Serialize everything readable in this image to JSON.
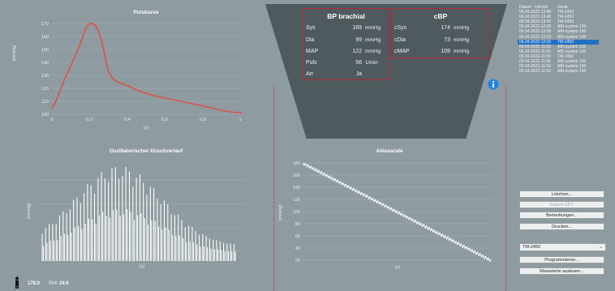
{
  "pulse_chart": {
    "title": "Pulskurve",
    "ylabel": "[mmHg]",
    "xlabel": "[s]",
    "yticks": [
      "170",
      "160",
      "150",
      "140",
      "130",
      "120",
      "110",
      "100"
    ],
    "xticks": [
      "0",
      "0,2",
      "0,4",
      "0,6",
      "0,8",
      "1"
    ],
    "color": "#e8473a"
  },
  "osc_chart": {
    "title": "Oszillatorischer Druckverlauf",
    "ylabel": "[mmHg]",
    "xlabel": "[s]"
  },
  "ablass_chart": {
    "title": "Ablassrate",
    "ylabel": "[mmHg]",
    "xlabel": "[s]",
    "yticks": [
      "180",
      "160",
      "140",
      "120",
      "100",
      "80",
      "60",
      "40",
      "20"
    ]
  },
  "bp_brachial": {
    "title": "BP brachial",
    "rows": [
      {
        "label": "Sys",
        "value": "169",
        "unit": "mmHg"
      },
      {
        "label": "Dia",
        "value": "99",
        "unit": "mmHg"
      },
      {
        "label": "MAP",
        "value": "122",
        "unit": "mmHg"
      },
      {
        "label": "Puls",
        "value": "56",
        "unit": "1/min"
      },
      {
        "label": "Arr",
        "value": "Ja",
        "unit": ""
      }
    ]
  },
  "cbp": {
    "title": "cBP",
    "rows": [
      {
        "label": "cSys",
        "value": "174",
        "unit": "mmHg"
      },
      {
        "label": "cDia",
        "value": "73",
        "unit": "mmHg"
      },
      {
        "label": "cMAP",
        "value": "109",
        "unit": "mmHg"
      }
    ]
  },
  "measurements": {
    "header_date": "Datum - Uhrzeit",
    "header_device": "Gerät",
    "rows": [
      {
        "date": "06.04.2022-13:46",
        "device": "TM-2450"
      },
      {
        "date": "06.04.2022-13:40",
        "device": "TM-2450"
      },
      {
        "date": "06.04.2022-13:05",
        "device": "TM-2450"
      },
      {
        "date": "06.04.2022-12:09",
        "device": "ABI-system 100"
      },
      {
        "date": "06.04.2022-12:05",
        "device": "ABI-system 100"
      },
      {
        "date": "06.04.2022-12:03",
        "device": "ABI-system 100"
      },
      {
        "date": "06.04.2022-12:02",
        "device": "TM-2450"
      },
      {
        "date": "06.04.2022-11:59",
        "device": "ABI-system 100"
      },
      {
        "date": "06.04.2022-11:55",
        "device": "ABI-system 100"
      },
      {
        "date": "05.04.2022-11:59",
        "device": "TM-2450"
      },
      {
        "date": "05.04.2022-11:56",
        "device": "ABI-system 100"
      },
      {
        "date": "05.04.2022-11:54",
        "device": "ABI-system 100"
      },
      {
        "date": "05.04.2022-11:53",
        "device": "ABI-system 100"
      }
    ],
    "selected_index": 6
  },
  "buttons": {
    "loeschen": "Löschen...",
    "export": "Export GDT",
    "bemerkungen": "Bemerkungen...",
    "drucken": "Drucken...",
    "programmieren": "Programmieren...",
    "messwerte": "Messwerte auslesen..."
  },
  "device_select": {
    "value": "TM-2450"
  },
  "patient": {
    "height": "178.0",
    "bmi_label": "BMI",
    "bmi": "24.6"
  },
  "colors": {
    "accent_red": "#b3283a",
    "selection_blue": "#1f6fc4",
    "info_blue": "#1f86e0"
  }
}
